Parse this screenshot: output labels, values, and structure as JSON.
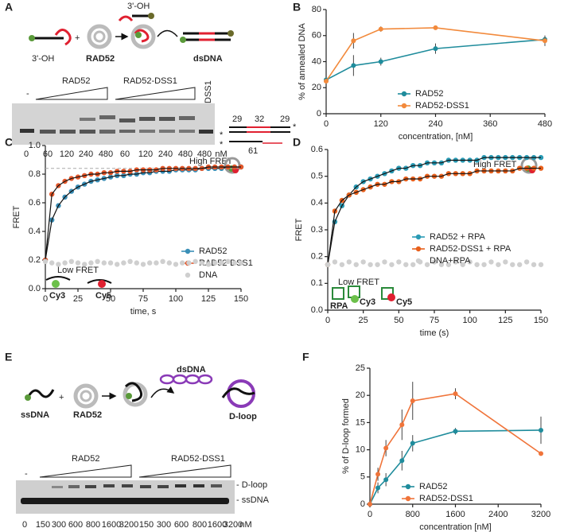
{
  "figure": {
    "panel_labels": [
      "A",
      "B",
      "C",
      "D",
      "E",
      "F"
    ],
    "a": {
      "oh_left": "3'-OH",
      "oh_top": "3'-OH",
      "protein": "RAD52",
      "product": "dsDNA",
      "gel_dash": "-",
      "gel_rad52": "RAD52",
      "gel_dss1_complex": "RAD52-DSS1",
      "gel_dss1": "DSS1",
      "lanes": [
        "0",
        "60",
        "120",
        "240",
        "480",
        "60",
        "120",
        "240",
        "480",
        "480",
        "nM"
      ],
      "len_left": "29",
      "len_mid": "32",
      "len_right": "29",
      "len_bottom": "61"
    },
    "c": {
      "high": "High FRET",
      "low": "Low FRET",
      "cy3": "Cy3",
      "cy5": "Cy5"
    },
    "d": {
      "high": "High FRET",
      "low": "Low FRET",
      "rpa": "RPA",
      "cy3": "Cy3",
      "cy5": "Cy5"
    },
    "e": {
      "ssdna": "ssDNA",
      "protein": "RAD52",
      "dsdna": "dsDNA",
      "dloop": "D-loop",
      "gel_dash": "-",
      "gel_rad52": "RAD52",
      "gel_dss1": "RAD52-DSS1",
      "band_dloop": "- D-loop",
      "band_ssdna": "- ssDNA",
      "lanes": [
        "0",
        "150",
        "300",
        "600",
        "800",
        "1600",
        "3200",
        "150",
        "300",
        "600",
        "800",
        "1600",
        "3200",
        "nM"
      ]
    }
  },
  "chart_data": [
    {
      "type": "line",
      "x_label": "concentration, [nM]",
      "y_label": "% of annealed DNA",
      "x": [
        0,
        60,
        120,
        240,
        480
      ],
      "xlim": [
        0,
        480
      ],
      "xticks": [
        0,
        120,
        240,
        360,
        480
      ],
      "ylim": [
        0,
        80
      ],
      "yticks": [
        0,
        20,
        40,
        60,
        80
      ],
      "legend": "lower middle",
      "series": [
        {
          "name": "RAD52",
          "color": "#1f8c9c",
          "values": [
            26,
            37,
            40,
            50,
            57
          ],
          "errors": [
            2,
            8,
            3,
            4,
            3
          ]
        },
        {
          "name": "RAD52-DSS1",
          "color": "#f28a3c",
          "values": [
            25,
            56,
            65,
            66,
            56
          ],
          "errors": [
            2,
            6,
            2,
            0.5,
            4
          ]
        }
      ]
    },
    {
      "type": "scatter",
      "x_label": "time, s",
      "y_label": "FRET",
      "x": [
        0,
        5,
        10,
        15,
        20,
        25,
        30,
        35,
        40,
        45,
        50,
        55,
        60,
        65,
        70,
        75,
        80,
        85,
        90,
        95,
        100,
        105,
        110,
        115,
        120,
        125,
        130,
        135,
        140,
        145,
        150
      ],
      "xlim": [
        0,
        150
      ],
      "xticks": [
        0,
        25,
        50,
        75,
        100,
        125,
        150
      ],
      "ylim": [
        0,
        1
      ],
      "yticks": [
        {
          "value": 0,
          "label": "0.0"
        },
        0.2,
        0.4,
        0.6,
        0.8,
        {
          "value": 1,
          "label": "1.0"
        }
      ],
      "hline": 0.84,
      "legend": "lower right",
      "series": [
        {
          "name": "RAD52",
          "color": "#3a8fb7",
          "fit": true,
          "values": [
            0.2,
            0.48,
            0.58,
            0.64,
            0.68,
            0.71,
            0.73,
            0.75,
            0.76,
            0.77,
            0.78,
            0.79,
            0.79,
            0.8,
            0.8,
            0.81,
            0.81,
            0.82,
            0.82,
            0.82,
            0.83,
            0.83,
            0.83,
            0.83,
            0.84,
            0.84,
            0.84,
            0.84,
            0.85,
            0.85,
            0.85
          ]
        },
        {
          "name": "RAD52-DSS1",
          "color": "#e4572a",
          "fit": true,
          "values": [
            0.2,
            0.66,
            0.72,
            0.75,
            0.77,
            0.78,
            0.79,
            0.8,
            0.8,
            0.81,
            0.81,
            0.82,
            0.82,
            0.82,
            0.83,
            0.83,
            0.83,
            0.83,
            0.84,
            0.84,
            0.84,
            0.84,
            0.84,
            0.84,
            0.84,
            0.85,
            0.85,
            0.85,
            0.85,
            0.85,
            0.85
          ]
        },
        {
          "name": "DNA",
          "color": "#cfcfcf",
          "fit": false,
          "values": [
            0.19,
            0.18,
            0.17,
            0.18,
            0.19,
            0.18,
            0.17,
            0.18,
            0.19,
            0.18,
            0.18,
            0.17,
            0.18,
            0.19,
            0.18,
            0.17,
            0.18,
            0.18,
            0.19,
            0.18,
            0.17,
            0.18,
            0.18,
            0.19,
            0.18,
            0.17,
            0.18,
            0.18,
            0.19,
            0.18,
            0.18
          ]
        }
      ]
    },
    {
      "type": "scatter",
      "x_label": "time (s)",
      "y_label": "FRET",
      "x": [
        0,
        5,
        10,
        15,
        20,
        25,
        30,
        35,
        40,
        45,
        50,
        55,
        60,
        65,
        70,
        75,
        80,
        85,
        90,
        95,
        100,
        105,
        110,
        115,
        120,
        125,
        130,
        135,
        140,
        145,
        150
      ],
      "xlim": [
        0,
        150
      ],
      "xticks": [
        0,
        25,
        50,
        75,
        100,
        125,
        150
      ],
      "ylim": [
        0,
        0.6
      ],
      "yticks": [
        {
          "value": 0,
          "label": "0.0"
        },
        0.1,
        0.2,
        0.3,
        0.4,
        0.5,
        0.6
      ],
      "legend": "middle right",
      "series": [
        {
          "name": "RAD52 + RPA",
          "color": "#2a9bb5",
          "fit": true,
          "values": [
            0.17,
            0.33,
            0.39,
            0.43,
            0.46,
            0.48,
            0.49,
            0.5,
            0.51,
            0.52,
            0.53,
            0.53,
            0.54,
            0.54,
            0.55,
            0.55,
            0.55,
            0.56,
            0.56,
            0.56,
            0.56,
            0.56,
            0.57,
            0.57,
            0.57,
            0.57,
            0.57,
            0.57,
            0.57,
            0.57,
            0.57
          ]
        },
        {
          "name": "RAD52-DSS1 + RPA",
          "color": "#e8601c",
          "fit": true,
          "values": [
            0.17,
            0.37,
            0.41,
            0.43,
            0.44,
            0.45,
            0.46,
            0.47,
            0.47,
            0.48,
            0.48,
            0.49,
            0.49,
            0.49,
            0.5,
            0.5,
            0.5,
            0.51,
            0.51,
            0.51,
            0.51,
            0.52,
            0.52,
            0.52,
            0.52,
            0.52,
            0.52,
            0.53,
            0.53,
            0.53,
            0.53
          ]
        },
        {
          "name": "DNA+RPA",
          "color": "#cfcfcf",
          "fit": false,
          "values": [
            0.17,
            0.18,
            0.17,
            0.18,
            0.17,
            0.18,
            0.17,
            0.17,
            0.18,
            0.17,
            0.18,
            0.17,
            0.17,
            0.18,
            0.17,
            0.18,
            0.17,
            0.17,
            0.18,
            0.17,
            0.18,
            0.17,
            0.17,
            0.18,
            0.17,
            0.18,
            0.17,
            0.17,
            0.18,
            0.17,
            0.17
          ]
        }
      ]
    },
    {
      "type": "line",
      "x_label": "concentration [nM]",
      "y_label": "% of D-loop formed",
      "x": [
        0,
        150,
        300,
        600,
        800,
        1600,
        3200
      ],
      "xlim": [
        0,
        3200
      ],
      "xticks": [
        0,
        800,
        1600,
        2400,
        3200
      ],
      "ylim": [
        0,
        25
      ],
      "yticks": [
        0,
        5,
        10,
        15,
        20,
        25
      ],
      "legend": "lower middle",
      "series": [
        {
          "name": "RAD52",
          "color": "#1f8c9c",
          "values": [
            0,
            3,
            4.5,
            8,
            11.2,
            13.4,
            13.6
          ],
          "errors": [
            0,
            1,
            1.2,
            1.8,
            1.5,
            0.6,
            2.5
          ]
        },
        {
          "name": "RAD52-DSS1",
          "color": "#f0743a",
          "values": [
            0,
            5.5,
            10.3,
            14.6,
            19,
            20.3,
            9.3
          ],
          "errors": [
            0,
            1.2,
            1.5,
            2.8,
            3.5,
            1,
            0
          ]
        }
      ]
    }
  ]
}
